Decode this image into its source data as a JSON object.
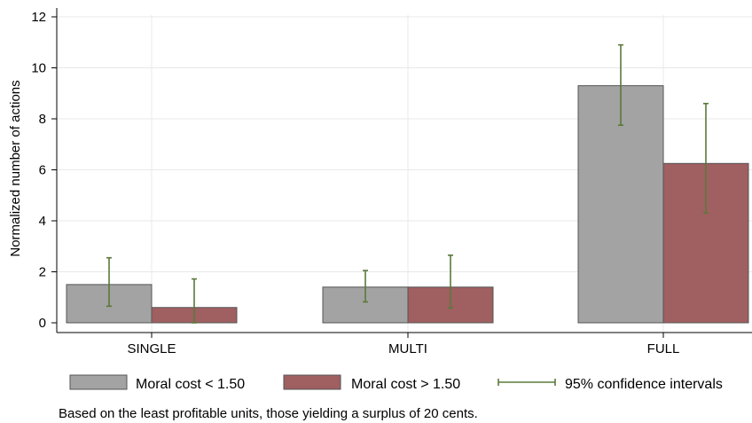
{
  "chart_data": {
    "type": "bar",
    "ylabel": "Normalized number of actions",
    "ylim": [
      0,
      12
    ],
    "yticks": [
      0,
      2,
      4,
      6,
      8,
      10,
      12
    ],
    "categories": [
      "SINGLE",
      "MULTI",
      "FULL"
    ],
    "grid": true,
    "legend_position": "bottom",
    "series": [
      {
        "name": "Moral cost < 1.50",
        "color": "#a3a3a3",
        "values": [
          1.5,
          1.4,
          9.3
        ],
        "ci_low": [
          0.65,
          0.82,
          7.75
        ],
        "ci_high": [
          2.55,
          2.05,
          10.9
        ]
      },
      {
        "name": "Moral cost > 1.50",
        "color": "#a05f61",
        "values": [
          0.6,
          1.4,
          6.25
        ],
        "ci_low": [
          0.0,
          0.58,
          4.3
        ],
        "ci_high": [
          1.72,
          2.65,
          8.6
        ]
      }
    ],
    "ci_label": "95% confidence intervals",
    "ci_color": "#5a7a3a",
    "note": "Based on the least profitable units, those yielding a surplus of 20 cents."
  }
}
